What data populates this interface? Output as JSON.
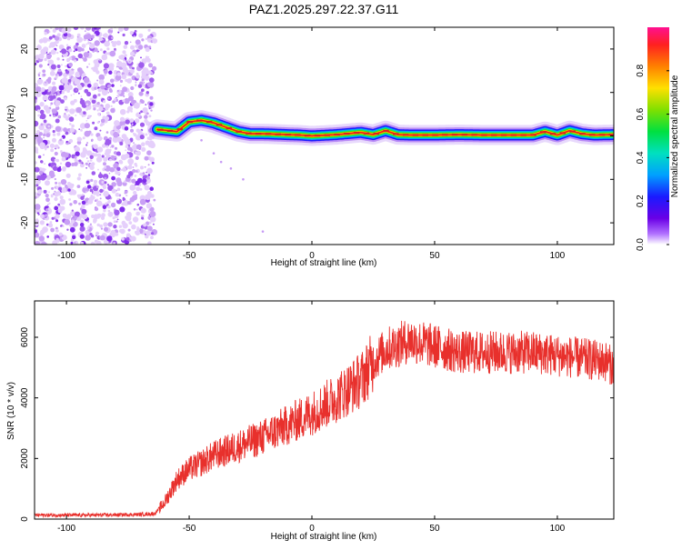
{
  "title": "PAZ1.2025.297.22.37.G11",
  "colors": {
    "line": "#e8302c",
    "axis": "#000000",
    "background": "#ffffff"
  },
  "chart_data": [
    {
      "type": "heatmap",
      "title": "PAZ1.2025.297.22.37.G11",
      "xlabel": "Height of straight line (km)",
      "ylabel": "Frequency (Hz)",
      "xlim": [
        -113,
        123
      ],
      "ylim": [
        -25,
        25
      ],
      "xticks": [
        -100,
        -50,
        0,
        50,
        100
      ],
      "yticks": [
        -20,
        -10,
        0,
        10,
        20
      ],
      "noise_region_x": [
        -113,
        -64
      ],
      "ridge": {
        "description_points_x": [
          -63,
          -55,
          -50,
          -45,
          -40,
          -35,
          -30,
          -25,
          -20,
          -10,
          -5,
          0,
          10,
          20,
          25,
          30,
          35,
          40,
          50,
          60,
          70,
          80,
          90,
          95,
          100,
          105,
          110,
          115,
          123
        ],
        "description_points_y": [
          1.5,
          1.0,
          3.2,
          3.6,
          3.0,
          2.0,
          1.0,
          0.5,
          0.5,
          0.3,
          0.2,
          0,
          0.3,
          0.8,
          0.3,
          1.2,
          0.3,
          0.2,
          0.2,
          0.3,
          0.2,
          0.2,
          0.2,
          1.0,
          0.2,
          1.2,
          0.5,
          0.2,
          0.3
        ]
      },
      "scatter_tail": {
        "x": [
          -45,
          -40,
          -37,
          -33,
          -28,
          -20
        ],
        "y": [
          -1,
          -4,
          -6,
          -7.5,
          -10,
          -22
        ]
      },
      "colorbar": {
        "label": "Normalized spectral amplitude",
        "range": [
          0,
          1
        ],
        "ticks": [
          0.0,
          0.2,
          0.4,
          0.6,
          0.8
        ],
        "tick_labels": [
          "0.0",
          "0.2",
          "0.4",
          "0.6",
          "0.8"
        ]
      }
    },
    {
      "type": "line",
      "xlabel": "Height of straight line (km)",
      "ylabel": "SNR (10 * v/v)",
      "xlim": [
        -113,
        123
      ],
      "ylim": [
        0,
        7200
      ],
      "xticks": [
        -100,
        -50,
        0,
        50,
        100
      ],
      "yticks": [
        0,
        2000,
        4000,
        6000
      ],
      "series": [
        {
          "name": "SNR",
          "trend_x": [
            -113,
            -90,
            -70,
            -64,
            -60,
            -55,
            -50,
            -45,
            -40,
            -30,
            -20,
            -10,
            0,
            10,
            20,
            25,
            30,
            40,
            50,
            60,
            70,
            80,
            90,
            100,
            110,
            120,
            123
          ],
          "trend_y": [
            130,
            130,
            150,
            180,
            550,
            1300,
            1650,
            1850,
            2100,
            2400,
            2700,
            3100,
            3500,
            4000,
            4600,
            5200,
            5600,
            5900,
            5700,
            5500,
            5500,
            5500,
            5500,
            5400,
            5300,
            5200,
            5000
          ]
        }
      ]
    }
  ]
}
